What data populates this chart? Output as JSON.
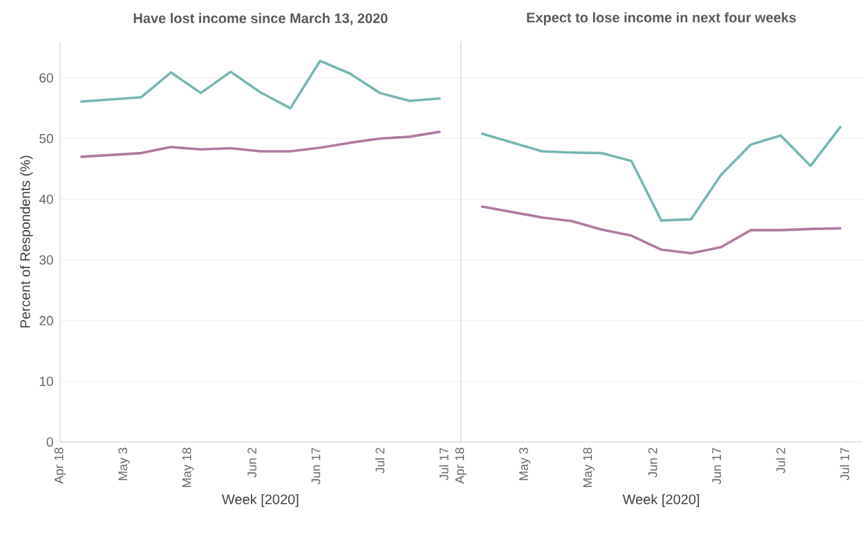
{
  "chart_data": [
    {
      "type": "line",
      "title": "Have lost income since March 13, 2020",
      "xlabel": "Week [2020]",
      "ylabel": "Percent of Respondents (%)",
      "x": [
        "2020-04-23",
        "2020-05-07",
        "2020-05-14",
        "2020-05-21",
        "2020-05-28",
        "2020-06-04",
        "2020-06-11",
        "2020-06-18",
        "2020-06-25",
        "2020-07-02",
        "2020-07-09",
        "2020-07-16"
      ],
      "series": [
        {
          "color": "#76b7b2",
          "values": [
            56.1,
            56.8,
            60.9,
            57.5,
            61.0,
            57.6,
            55.0,
            62.8,
            60.7,
            57.5,
            56.2,
            56.6
          ]
        },
        {
          "color": "#b07aa1",
          "values": [
            47.0,
            47.6,
            48.6,
            48.2,
            48.4,
            47.9,
            47.9,
            48.5,
            49.3,
            50.0,
            50.3,
            51.1
          ]
        }
      ],
      "xlim": [
        "2020-04-18",
        "2020-07-21"
      ],
      "ylim": [
        0,
        66
      ],
      "xticks": [
        {
          "value": "2020-04-18",
          "label": "Apr 18"
        },
        {
          "value": "2020-05-03",
          "label": "May 3"
        },
        {
          "value": "2020-05-18",
          "label": "May 18"
        },
        {
          "value": "2020-06-02",
          "label": "Jun 2"
        },
        {
          "value": "2020-06-17",
          "label": "Jun 17"
        },
        {
          "value": "2020-07-02",
          "label": "Jul 2"
        },
        {
          "value": "2020-07-17",
          "label": "Jul 17"
        }
      ],
      "yticks": [
        0,
        10,
        20,
        30,
        40,
        50,
        60
      ],
      "grid": "y"
    },
    {
      "type": "line",
      "title": "Expect to lose income in next four weeks",
      "xlabel": "Week [2020]",
      "x": [
        "2020-04-23",
        "2020-05-07",
        "2020-05-14",
        "2020-05-21",
        "2020-05-28",
        "2020-06-04",
        "2020-06-11",
        "2020-06-18",
        "2020-06-25",
        "2020-07-02",
        "2020-07-09",
        "2020-07-16"
      ],
      "series": [
        {
          "color": "#76b7b2",
          "values": [
            50.8,
            47.9,
            47.7,
            47.6,
            46.3,
            36.5,
            36.7,
            44.0,
            49.0,
            50.5,
            45.5,
            51.9
          ]
        },
        {
          "color": "#b07aa1",
          "values": [
            38.8,
            37.0,
            36.4,
            35.0,
            34.0,
            31.7,
            31.1,
            32.1,
            34.9,
            34.9,
            35.1,
            35.2
          ]
        }
      ],
      "xlim": [
        "2020-04-18",
        "2020-07-21"
      ],
      "ylim": [
        0,
        66
      ],
      "xticks": [
        {
          "value": "2020-04-18",
          "label": "Apr 18"
        },
        {
          "value": "2020-05-03",
          "label": "May 3"
        },
        {
          "value": "2020-05-18",
          "label": "May 18"
        },
        {
          "value": "2020-06-02",
          "label": "Jun 2"
        },
        {
          "value": "2020-06-17",
          "label": "Jun 17"
        },
        {
          "value": "2020-07-02",
          "label": "Jul 2"
        },
        {
          "value": "2020-07-17",
          "label": "Jul 17"
        }
      ],
      "yticks": [
        0,
        10,
        20,
        30,
        40,
        50,
        60
      ],
      "grid": "y",
      "tick_labels": "x"
    }
  ]
}
